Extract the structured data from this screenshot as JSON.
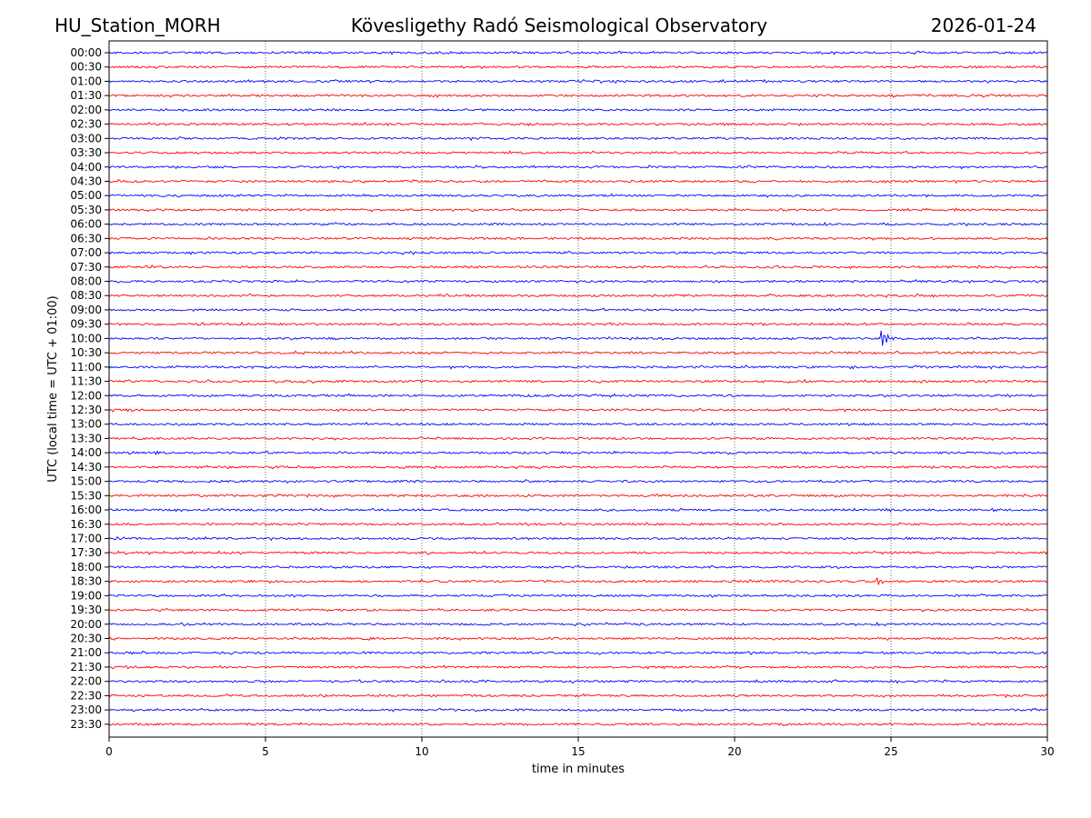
{
  "header": {
    "station": "HU_Station_MORH",
    "observatory": "Kövesligethy Radó Seismological Observatory",
    "date": "2026-01-24"
  },
  "chart_data": {
    "type": "line",
    "subtype": "helicorder",
    "xlabel": "time in minutes",
    "ylabel": "UTC (local time = UTC + 01:00)",
    "xlim": [
      0,
      30
    ],
    "x_ticks": [
      0,
      5,
      10,
      15,
      20,
      25,
      30
    ],
    "x_tick_labels": [
      "0",
      "5",
      "10",
      "15",
      "20",
      "25",
      "30"
    ],
    "vertical_gridlines_at": [
      5,
      10,
      15,
      20,
      25
    ],
    "row_labels": [
      "00:00",
      "00:30",
      "01:00",
      "01:30",
      "02:00",
      "02:30",
      "03:00",
      "03:30",
      "04:00",
      "04:30",
      "05:00",
      "05:30",
      "06:00",
      "06:30",
      "07:00",
      "07:30",
      "08:00",
      "08:30",
      "09:00",
      "09:30",
      "10:00",
      "10:30",
      "11:00",
      "11:30",
      "12:00",
      "12:30",
      "13:00",
      "13:30",
      "14:00",
      "14:30",
      "15:00",
      "15:30",
      "16:00",
      "16:30",
      "17:00",
      "17:30",
      "18:00",
      "18:30",
      "19:00",
      "19:30",
      "20:00",
      "20:30",
      "21:00",
      "21:30",
      "22:00",
      "22:30",
      "23:00",
      "23:30"
    ],
    "series_colors": [
      "#0000ff",
      "#ff0000"
    ],
    "events": [
      {
        "row": "10:00",
        "minute": 24.7,
        "amplitude": "large"
      },
      {
        "row": "18:30",
        "minute": 24.6,
        "amplitude": "small"
      }
    ]
  }
}
